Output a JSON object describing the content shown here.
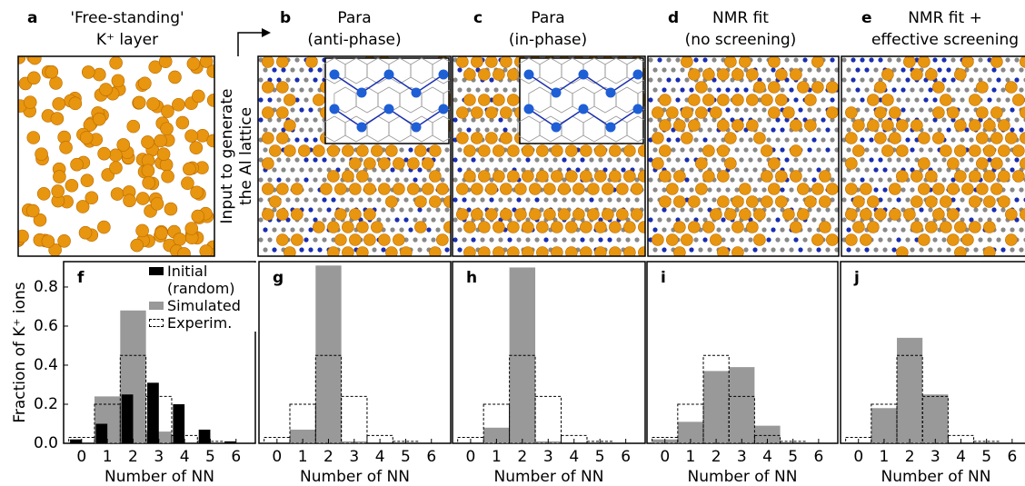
{
  "panels": [
    {
      "label": "a",
      "title": [
        "'Free-standing'",
        "K⁺ layer"
      ]
    },
    {
      "label": "b",
      "title": [
        "Para",
        "(anti-phase)"
      ]
    },
    {
      "label": "c",
      "title": [
        "Para",
        "(in-phase)"
      ]
    },
    {
      "label": "d",
      "title": [
        "NMR fit",
        "(no screening)"
      ]
    },
    {
      "label": "e",
      "title": [
        "NMR fit +",
        "effective screening"
      ]
    }
  ],
  "arrow_label": [
    "Input to generate",
    "the Al lattice"
  ],
  "chart_data": [
    {
      "type": "bar",
      "panel": "f",
      "ylabel": "Fraction of K⁺ ions",
      "xlabel": "Number of NN",
      "x": [
        0,
        1,
        2,
        3,
        4,
        5,
        6
      ],
      "xlim": [
        -0.7,
        6.75
      ],
      "xticks": [
        0,
        1,
        2,
        3,
        4,
        5,
        6
      ],
      "ylim": [
        0,
        0.93
      ],
      "yticks": [
        {
          "value": 0,
          "label": "0.0"
        },
        0.2,
        0.4,
        0.6,
        0.8
      ],
      "series": [
        {
          "name": "Initial (random)",
          "color": "#000000",
          "values": [
            0.02,
            0.1,
            0.25,
            0.31,
            0.2,
            0.07,
            0.01
          ]
        },
        {
          "name": "Simulated",
          "color": "#999999",
          "values": [
            0,
            0.24,
            0.68,
            0.06,
            0,
            0,
            0
          ]
        },
        {
          "name": "Experim.",
          "color": "#000000",
          "values": [
            0.03,
            0.2,
            0.45,
            0.24,
            0.04,
            0.01,
            0
          ]
        }
      ]
    },
    {
      "type": "bar",
      "panel": "g",
      "xlabel": "Number of NN",
      "x": [
        0,
        1,
        2,
        3,
        4,
        5,
        6
      ],
      "xlim": [
        -0.7,
        6.75
      ],
      "xticks": [
        0,
        1,
        2,
        3,
        4,
        5,
        6
      ],
      "ylim": [
        0,
        0.93
      ],
      "series": [
        {
          "color": "#999999",
          "values": [
            0,
            0.07,
            0.91,
            0.01,
            0,
            0,
            0
          ]
        },
        {
          "color": "#000000",
          "values": [
            0.03,
            0.2,
            0.45,
            0.24,
            0.04,
            0.01,
            0
          ]
        }
      ]
    },
    {
      "type": "bar",
      "panel": "h",
      "xlabel": "Number of NN",
      "x": [
        0,
        1,
        2,
        3,
        4,
        5,
        6
      ],
      "xlim": [
        -0.7,
        6.75
      ],
      "xticks": [
        0,
        1,
        2,
        3,
        4,
        5,
        6
      ],
      "ylim": [
        0,
        0.93
      ],
      "series": [
        {
          "color": "#999999",
          "values": [
            0,
            0.08,
            0.9,
            0.01,
            0,
            0,
            0
          ]
        },
        {
          "color": "#000000",
          "values": [
            0.03,
            0.2,
            0.45,
            0.24,
            0.04,
            0.01,
            0
          ]
        }
      ]
    },
    {
      "type": "bar",
      "panel": "i",
      "xlabel": "Number of NN",
      "x": [
        0,
        1,
        2,
        3,
        4,
        5,
        6
      ],
      "xlim": [
        -0.7,
        6.75
      ],
      "xticks": [
        0,
        1,
        2,
        3,
        4,
        5,
        6
      ],
      "ylim": [
        0,
        0.93
      ],
      "series": [
        {
          "color": "#999999",
          "values": [
            0.02,
            0.11,
            0.37,
            0.39,
            0.09,
            0,
            0
          ]
        },
        {
          "color": "#000000",
          "values": [
            0.03,
            0.2,
            0.45,
            0.24,
            0.04,
            0.01,
            0
          ]
        }
      ]
    },
    {
      "type": "bar",
      "panel": "j",
      "xlabel": "Number of NN",
      "x": [
        0,
        1,
        2,
        3,
        4,
        5,
        6
      ],
      "xlim": [
        -0.7,
        6.75
      ],
      "xticks": [
        0,
        1,
        2,
        3,
        4,
        5,
        6
      ],
      "ylim": [
        0,
        0.93
      ],
      "series": [
        {
          "color": "#999999",
          "values": [
            0,
            0.18,
            0.54,
            0.25,
            0,
            0,
            0
          ]
        },
        {
          "color": "#000000",
          "values": [
            0.03,
            0.2,
            0.45,
            0.24,
            0.04,
            0.01,
            0
          ]
        }
      ]
    }
  ]
}
